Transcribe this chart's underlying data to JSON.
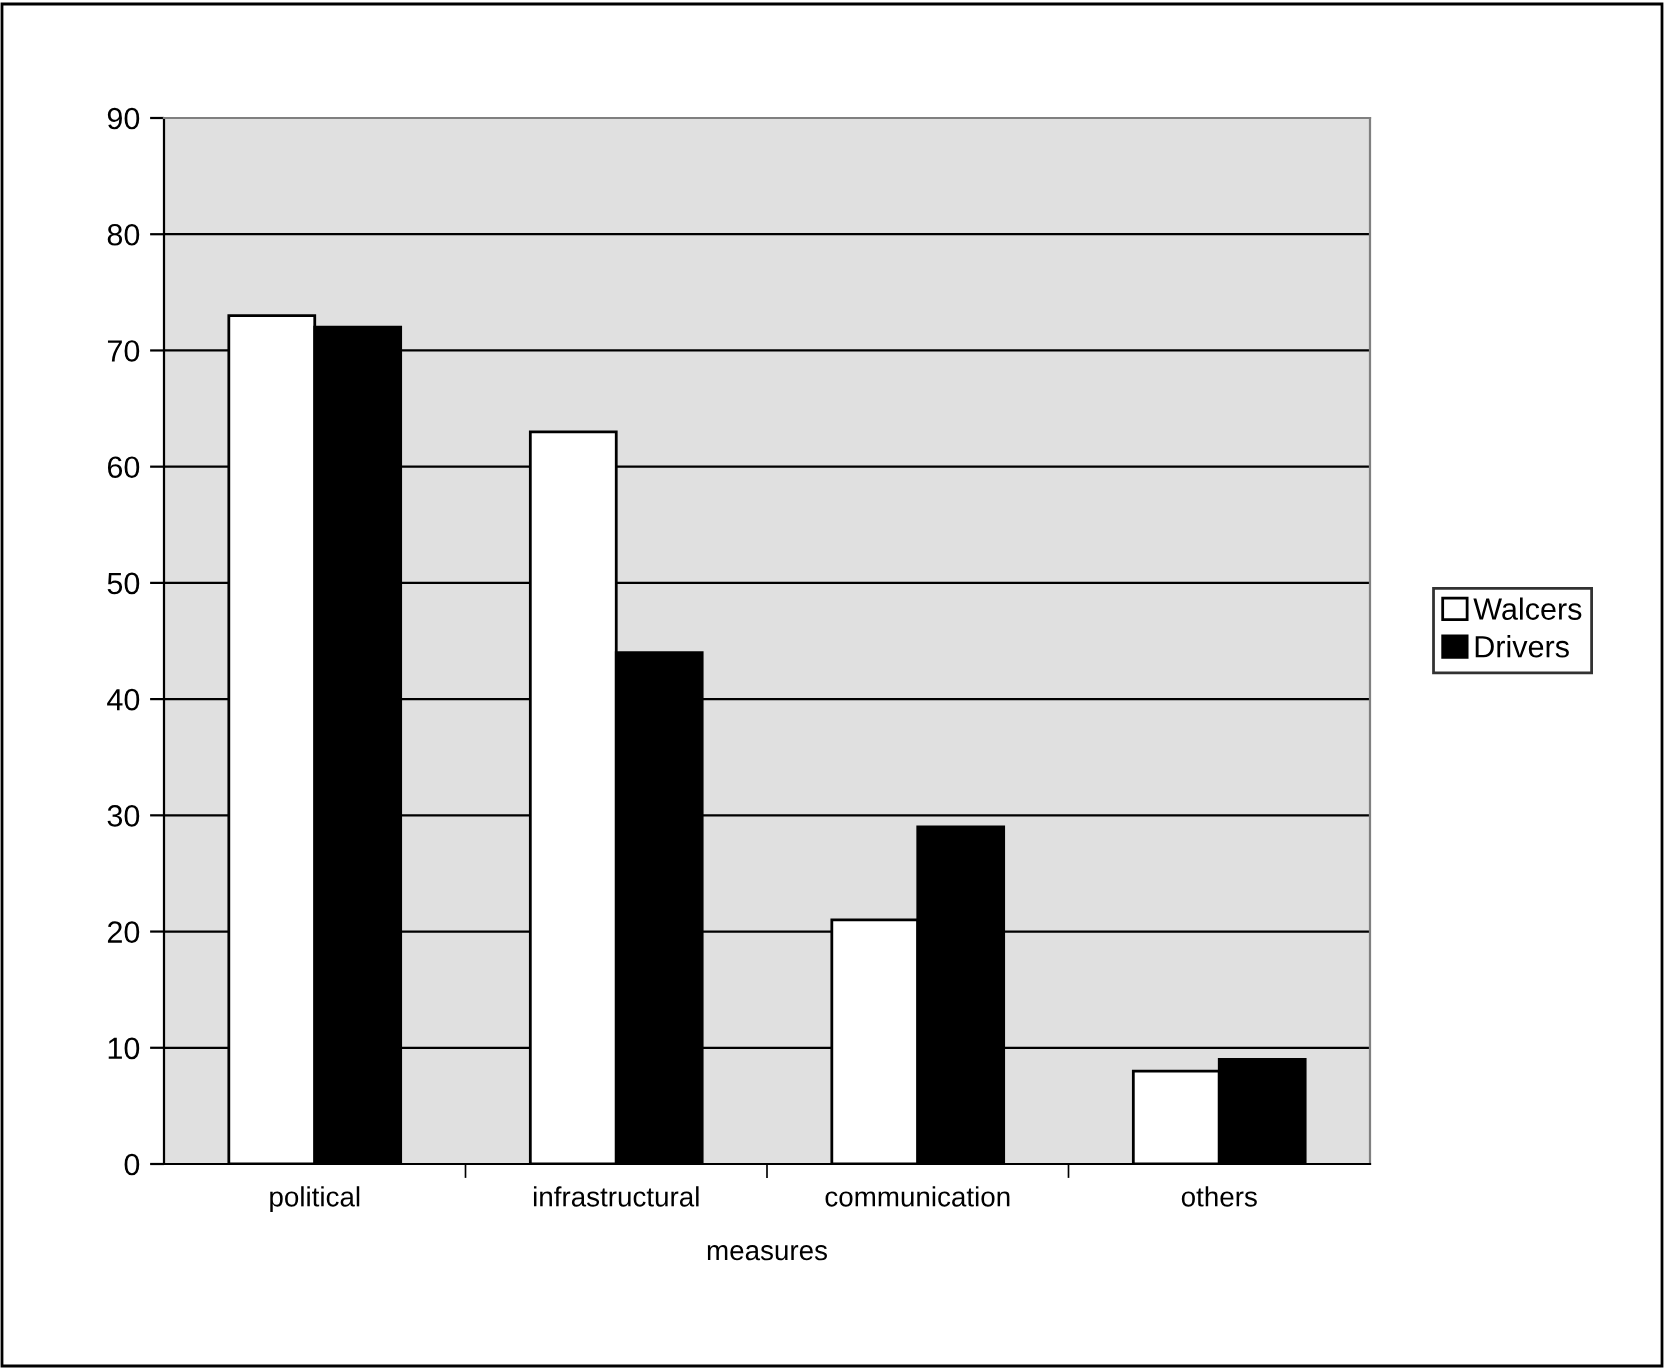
{
  "chart_data": {
    "type": "bar",
    "xlabel": "measures",
    "categories": [
      "political",
      "infrastructural",
      "communication",
      "others"
    ],
    "series": [
      {
        "name": "Walcers",
        "color": "#ffffff",
        "values": [
          73,
          63,
          21,
          8
        ]
      },
      {
        "name": "Drivers",
        "color": "#000000",
        "values": [
          72,
          44,
          29,
          9
        ]
      }
    ],
    "ylim": [
      0,
      90
    ],
    "yticks": [
      0,
      10,
      20,
      30,
      40,
      50,
      60,
      70,
      80,
      90
    ],
    "grid": "y",
    "legend": "right"
  }
}
